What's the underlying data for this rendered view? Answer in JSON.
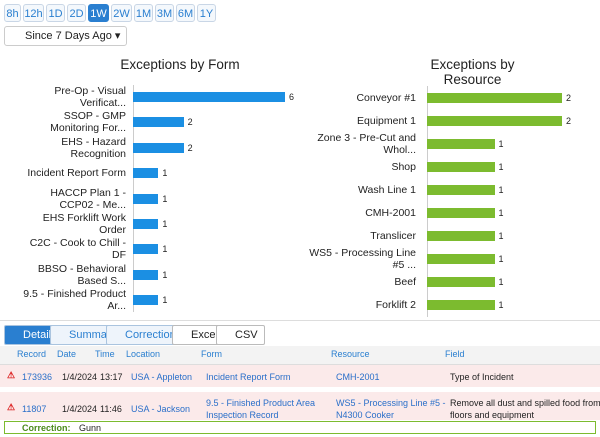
{
  "time_buttons": [
    "8h",
    "12h",
    "1D",
    "2D",
    "1W",
    "2W",
    "1M",
    "3M",
    "6M",
    "1Y"
  ],
  "active_button": "1W",
  "range_dropdown": "Since 7 Days Ago",
  "chart_data": [
    {
      "type": "hbar",
      "title": "Exceptions by Form",
      "color": "#1b8fe3",
      "categories": [
        "Pre-Op - Visual Verificat...",
        "SSOP - GMP Monitoring For...",
        "EHS - Hazard Recognition",
        "Incident Report Form",
        "HACCP Plan 1 - CCP02 - Me...",
        "EHS Forklift Work Order",
        "C2C - Cook to Chill - DF",
        "BBSO - Behavioral Based S...",
        "9.5 - Finished Product Ar..."
      ],
      "values": [
        6,
        2,
        2,
        1,
        1,
        1,
        1,
        1,
        1
      ]
    },
    {
      "type": "hbar",
      "title": "Exceptions by Resource",
      "color": "#7cbb2f",
      "categories": [
        "Conveyor #1",
        "Equipment 1",
        "Zone 3 - Pre-Cut and Whol...",
        "Shop",
        "Wash Line 1",
        "CMH-2001",
        "Translicer",
        "WS5 - Processing Line #5 ...",
        "Beef",
        "Forklift 2"
      ],
      "values": [
        2,
        2,
        1,
        1,
        1,
        1,
        1,
        1,
        1,
        1
      ]
    }
  ],
  "tabs": [
    "Details",
    "Summary",
    "Corrections",
    "Excel",
    "CSV"
  ],
  "table": {
    "headers": [
      "Record",
      "Date",
      "Time",
      "Location",
      "Form",
      "Resource",
      "Field"
    ],
    "rows": [
      [
        "173936",
        "1/4/2024",
        "13:17",
        "USA - Appleton",
        "Incident Report Form",
        "CMH-2001",
        "Type of Incident"
      ],
      [
        "11807",
        "1/4/2024",
        "11:46",
        "USA - Jackson",
        "9.5 - Finished Product Area Inspection Record",
        "WS5 - Processing Line #5 - N4300 Cooker",
        "Remove all dust and spilled food from floors and equipment"
      ]
    ],
    "correction": {
      "label": "Correction:",
      "value": "Gunn"
    }
  }
}
